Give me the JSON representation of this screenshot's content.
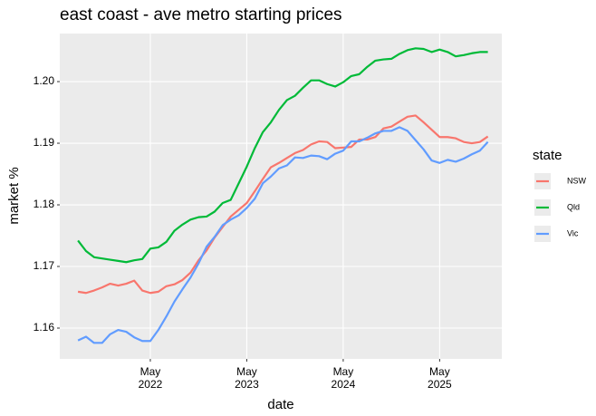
{
  "chart_data": {
    "type": "line",
    "title": "east coast - ave metro starting prices",
    "x_label": "date",
    "y_label": "market %",
    "x": [
      "2021-08",
      "2021-09",
      "2021-10",
      "2021-11",
      "2021-12",
      "2022-01",
      "2022-02",
      "2022-03",
      "2022-04",
      "2022-05",
      "2022-06",
      "2022-07",
      "2022-08",
      "2022-09",
      "2022-10",
      "2022-11",
      "2022-12",
      "2023-01",
      "2023-02",
      "2023-03",
      "2023-04",
      "2023-05",
      "2023-06",
      "2023-07",
      "2023-08",
      "2023-09",
      "2023-10",
      "2023-11",
      "2023-12",
      "2024-01",
      "2024-02",
      "2024-03",
      "2024-04",
      "2024-05",
      "2024-06",
      "2024-07",
      "2024-08",
      "2024-09",
      "2024-10",
      "2024-11",
      "2024-12",
      "2025-01",
      "2025-02",
      "2025-03",
      "2025-04",
      "2025-05",
      "2025-06",
      "2025-07",
      "2025-08",
      "2025-09",
      "2025-10",
      "2025-11"
    ],
    "series": [
      {
        "name": "NSW",
        "color": "#F8766D",
        "values": [
          1.1659,
          1.1657,
          1.1661,
          1.1666,
          1.1672,
          1.1669,
          1.1672,
          1.1677,
          1.1661,
          1.1657,
          1.1659,
          1.1668,
          1.1671,
          1.1678,
          1.169,
          1.171,
          1.1726,
          1.1747,
          1.1764,
          1.1781,
          1.1792,
          1.1803,
          1.1822,
          1.1842,
          1.1861,
          1.1868,
          1.1876,
          1.1884,
          1.1889,
          1.1898,
          1.1903,
          1.1902,
          1.1892,
          1.1893,
          1.1894,
          1.1906,
          1.1906,
          1.191,
          1.1924,
          1.1927,
          1.1935,
          1.1943,
          1.1945,
          1.1934,
          1.1922,
          1.191,
          1.191,
          1.1908,
          1.1902,
          1.19,
          1.1902,
          1.1911
        ]
      },
      {
        "name": "Qld",
        "color": "#00BA38",
        "values": [
          1.1742,
          1.1725,
          1.1715,
          1.1713,
          1.1711,
          1.1709,
          1.1707,
          1.171,
          1.1712,
          1.1729,
          1.1731,
          1.174,
          1.1758,
          1.1768,
          1.1776,
          1.178,
          1.1781,
          1.1789,
          1.1803,
          1.1808,
          1.1835,
          1.1862,
          1.1892,
          1.1918,
          1.1934,
          1.1954,
          1.197,
          1.1977,
          1.199,
          1.2002,
          1.2002,
          1.1996,
          1.1992,
          1.1999,
          1.2009,
          1.2012,
          1.2024,
          1.2034,
          1.2036,
          1.2037,
          1.2045,
          1.2051,
          1.2054,
          1.2053,
          1.2048,
          1.2052,
          1.2048,
          1.2041,
          1.2043,
          1.2046,
          1.2048,
          1.2048
        ]
      },
      {
        "name": "Vic",
        "color": "#619CFF",
        "values": [
          1.158,
          1.1586,
          1.1576,
          1.1576,
          1.159,
          1.1597,
          1.1594,
          1.1585,
          1.1579,
          1.1579,
          1.1597,
          1.1619,
          1.1643,
          1.1663,
          1.1682,
          1.1705,
          1.1732,
          1.1748,
          1.1767,
          1.1776,
          1.1783,
          1.1795,
          1.181,
          1.1835,
          1.1846,
          1.1859,
          1.1864,
          1.1877,
          1.1876,
          1.188,
          1.1879,
          1.1874,
          1.1883,
          1.1888,
          1.1903,
          1.1903,
          1.1909,
          1.1916,
          1.192,
          1.192,
          1.1926,
          1.192,
          1.1905,
          1.189,
          1.1872,
          1.1868,
          1.1873,
          1.187,
          1.1875,
          1.1882,
          1.1888,
          1.1902
        ]
      }
    ],
    "xlim": [
      "2021-05-23",
      "2025-12-23"
    ],
    "xticks": [
      {
        "value": "2022-05",
        "label": "May 2022"
      },
      {
        "value": "2023-05",
        "label": "May 2023"
      },
      {
        "value": "2024-05",
        "label": "May 2024"
      },
      {
        "value": "2025-05",
        "label": "May 2025"
      }
    ],
    "ylim": [
      1.155,
      1.2078
    ],
    "yticks": [
      1.16,
      1.17,
      1.18,
      1.19,
      {
        "value": 1.2,
        "label": "1.20"
      }
    ],
    "grid": true,
    "legend_title": "state",
    "legend_position": "right"
  }
}
